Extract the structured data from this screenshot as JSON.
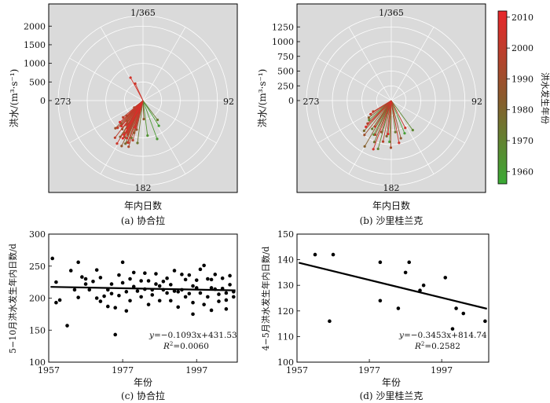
{
  "chart_data": [
    {
      "type": "polar",
      "panel": "a",
      "caption": "(a) 协合拉",
      "ylabel": "洪水/(m³·s⁻¹)",
      "xlabel": "年内日数",
      "radial_ticks": [
        "2000",
        "1500",
        "1000",
        "500",
        "0"
      ],
      "radial_tick_values": [
        2000,
        1500,
        1000,
        500,
        0
      ],
      "radial_max": 2280,
      "angle_labels": {
        "top": "1/365",
        "right": "92",
        "bottom": "182",
        "left": "273"
      },
      "series": [
        {
          "day": 150,
          "flood": 800,
          "year": 1960
        },
        {
          "day": 162,
          "flood": 1100,
          "year": 1962
        },
        {
          "day": 175,
          "flood": 950,
          "year": 1964
        },
        {
          "day": 200,
          "flood": 1050,
          "year": 1966
        },
        {
          "day": 212,
          "flood": 1000,
          "year": 1968
        },
        {
          "day": 226,
          "flood": 850,
          "year": 1970
        },
        {
          "day": 145,
          "flood": 650,
          "year": 1972
        },
        {
          "day": 190,
          "flood": 1150,
          "year": 1974
        },
        {
          "day": 222,
          "flood": 700,
          "year": 1976
        },
        {
          "day": 205,
          "flood": 1250,
          "year": 1978
        },
        {
          "day": 198,
          "flood": 900,
          "year": 1980
        },
        {
          "day": 215,
          "flood": 1150,
          "year": 1982
        },
        {
          "day": 230,
          "flood": 600,
          "year": 1984
        },
        {
          "day": 180,
          "flood": 500,
          "year": 1985
        },
        {
          "day": 208,
          "flood": 1350,
          "year": 1986
        },
        {
          "day": 219,
          "flood": 950,
          "year": 1987
        },
        {
          "day": 195,
          "flood": 800,
          "year": 1988
        },
        {
          "day": 228,
          "flood": 1050,
          "year": 1989
        },
        {
          "day": 210,
          "flood": 1100,
          "year": 1990
        },
        {
          "day": 203,
          "flood": 1200,
          "year": 1991
        },
        {
          "day": 216,
          "flood": 750,
          "year": 1992
        },
        {
          "day": 224,
          "flood": 900,
          "year": 1993
        },
        {
          "day": 200,
          "flood": 1300,
          "year": 1994
        },
        {
          "day": 207,
          "flood": 1000,
          "year": 1995
        },
        {
          "day": 213,
          "flood": 850,
          "year": 1996
        },
        {
          "day": 233,
          "flood": 700,
          "year": 1997
        },
        {
          "day": 197,
          "flood": 1100,
          "year": 1998
        },
        {
          "day": 220,
          "flood": 1250,
          "year": 1999
        },
        {
          "day": 209,
          "flood": 950,
          "year": 2000
        },
        {
          "day": 226,
          "flood": 1000,
          "year": 2001
        },
        {
          "day": 202,
          "flood": 1200,
          "year": 2002
        },
        {
          "day": 214,
          "flood": 1350,
          "year": 2003
        },
        {
          "day": 218,
          "flood": 800,
          "year": 2004
        },
        {
          "day": 206,
          "flood": 1100,
          "year": 2005
        },
        {
          "day": 223,
          "flood": 900,
          "year": 2006
        },
        {
          "day": 212,
          "flood": 1050,
          "year": 2007
        },
        {
          "day": 199,
          "flood": 750,
          "year": 2008
        },
        {
          "day": 230,
          "flood": 850,
          "year": 2009
        },
        {
          "day": 211,
          "flood": 1150,
          "year": 2010
        },
        {
          "day": 336,
          "flood": 700,
          "year": 2005
        },
        {
          "day": 340,
          "flood": 500,
          "year": 2003
        },
        {
          "day": 235,
          "flood": 300,
          "year": 1996
        }
      ]
    },
    {
      "type": "polar",
      "panel": "b",
      "caption": "(b) 沙里桂兰克",
      "ylabel": "洪水/(m³·s⁻¹)",
      "xlabel": "年内日数",
      "radial_ticks": [
        "1250",
        "1000",
        "750",
        "500",
        "250",
        "0"
      ],
      "radial_tick_values": [
        1250,
        1000,
        750,
        500,
        250,
        0
      ],
      "radial_max": 1440,
      "angle_labels": {
        "top": "1/365",
        "right": "92",
        "bottom": "182",
        "left": "273"
      },
      "series": [
        {
          "day": 160,
          "flood": 600,
          "year": 1960
        },
        {
          "day": 185,
          "flood": 700,
          "year": 1962
        },
        {
          "day": 210,
          "flood": 650,
          "year": 1964
        },
        {
          "day": 232,
          "flood": 500,
          "year": 1966
        },
        {
          "day": 146,
          "flood": 620,
          "year": 1968
        },
        {
          "day": 198,
          "flood": 850,
          "year": 1970
        },
        {
          "day": 217,
          "flood": 580,
          "year": 1972
        },
        {
          "day": 175,
          "flood": 540,
          "year": 1974
        },
        {
          "day": 205,
          "flood": 760,
          "year": 1976
        },
        {
          "day": 225,
          "flood": 690,
          "year": 1978
        },
        {
          "day": 190,
          "flood": 610,
          "year": 1980
        },
        {
          "day": 213,
          "flood": 900,
          "year": 1982
        },
        {
          "day": 236,
          "flood": 480,
          "year": 1984
        },
        {
          "day": 168,
          "flood": 660,
          "year": 1986
        },
        {
          "day": 200,
          "flood": 560,
          "year": 1988
        },
        {
          "day": 221,
          "flood": 740,
          "year": 1990
        },
        {
          "day": 183,
          "flood": 800,
          "year": 1992
        },
        {
          "day": 208,
          "flood": 640,
          "year": 1994
        },
        {
          "day": 229,
          "flood": 560,
          "year": 1996
        },
        {
          "day": 194,
          "flood": 710,
          "year": 1998
        },
        {
          "day": 215,
          "flood": 520,
          "year": 2000
        },
        {
          "day": 240,
          "flood": 420,
          "year": 2002
        },
        {
          "day": 172,
          "flood": 730,
          "year": 2004
        },
        {
          "day": 203,
          "flood": 880,
          "year": 2006
        },
        {
          "day": 227,
          "flood": 620,
          "year": 2008
        },
        {
          "day": 188,
          "flood": 570,
          "year": 2010
        },
        {
          "day": 155,
          "flood": 520,
          "year": 2003
        },
        {
          "day": 242,
          "flood": 360,
          "year": 1999
        }
      ]
    },
    {
      "type": "scatter",
      "panel": "c",
      "caption": "(c) 协合拉",
      "xlabel": "年份",
      "ylabel": "5−10月洪水发生年内日数/d",
      "xlim": [
        1957,
        2008
      ],
      "ylim": [
        100,
        300
      ],
      "xticks": [
        1957,
        1977,
        1997
      ],
      "yticks": [
        100,
        150,
        200,
        250,
        300
      ],
      "trend": {
        "slope": -0.1093,
        "intercept": 431.53
      },
      "equation_prefix": "y",
      "equation_body": "=−0.1093x+431.53",
      "r2_prefix": "R",
      "r2_sup": "2",
      "r2_body": "=0.0060",
      "points": [
        [
          1958,
          262
        ],
        [
          1959,
          225
        ],
        [
          1959,
          193
        ],
        [
          1960,
          197
        ],
        [
          1962,
          157
        ],
        [
          1963,
          243
        ],
        [
          1964,
          213
        ],
        [
          1965,
          256
        ],
        [
          1965,
          201
        ],
        [
          1966,
          233
        ],
        [
          1967,
          230
        ],
        [
          1967,
          222
        ],
        [
          1968,
          213
        ],
        [
          1969,
          226
        ],
        [
          1970,
          244
        ],
        [
          1970,
          200
        ],
        [
          1971,
          232
        ],
        [
          1971,
          195
        ],
        [
          1972,
          203
        ],
        [
          1973,
          213
        ],
        [
          1973,
          187
        ],
        [
          1974,
          222
        ],
        [
          1974,
          207
        ],
        [
          1975,
          143
        ],
        [
          1975,
          185
        ],
        [
          1976,
          236
        ],
        [
          1976,
          204
        ],
        [
          1977,
          256
        ],
        [
          1977,
          224
        ],
        [
          1978,
          210
        ],
        [
          1978,
          180
        ],
        [
          1979,
          196
        ],
        [
          1979,
          230
        ],
        [
          1980,
          240
        ],
        [
          1980,
          218
        ],
        [
          1981,
          211
        ],
        [
          1982,
          227
        ],
        [
          1982,
          202
        ],
        [
          1983,
          239
        ],
        [
          1983,
          214
        ],
        [
          1984,
          190
        ],
        [
          1984,
          227
        ],
        [
          1985,
          213
        ],
        [
          1985,
          205
        ],
        [
          1986,
          238
        ],
        [
          1986,
          222
        ],
        [
          1987,
          219
        ],
        [
          1987,
          196
        ],
        [
          1988,
          213
        ],
        [
          1988,
          226
        ],
        [
          1989,
          208
        ],
        [
          1989,
          231
        ],
        [
          1990,
          221
        ],
        [
          1990,
          196
        ],
        [
          1991,
          211
        ],
        [
          1991,
          243
        ],
        [
          1992,
          210
        ],
        [
          1992,
          186
        ],
        [
          1993,
          237
        ],
        [
          1993,
          213
        ],
        [
          1994,
          229
        ],
        [
          1994,
          202
        ],
        [
          1995,
          207
        ],
        [
          1995,
          236
        ],
        [
          1996,
          219
        ],
        [
          1996,
          193
        ],
        [
          1997,
          216
        ],
        [
          1997,
          228
        ],
        [
          1998,
          245
        ],
        [
          1998,
          208
        ],
        [
          1999,
          190
        ],
        [
          1999,
          251
        ],
        [
          2000,
          202
        ],
        [
          2000,
          230
        ],
        [
          2001,
          216
        ],
        [
          2001,
          181
        ],
        [
          2002,
          214
        ],
        [
          2002,
          237
        ],
        [
          2003,
          195
        ],
        [
          2003,
          206
        ],
        [
          2004,
          215
        ],
        [
          2004,
          231
        ],
        [
          2005,
          208
        ],
        [
          2005,
          197
        ],
        [
          2006,
          221
        ],
        [
          2006,
          235
        ],
        [
          2007,
          210
        ],
        [
          2007,
          202
        ],
        [
          2001,
          229
        ],
        [
          1996,
          175
        ],
        [
          2005,
          183
        ]
      ]
    },
    {
      "type": "scatter",
      "panel": "d",
      "caption": "(d) 沙里桂兰克",
      "xlabel": "年份",
      "ylabel": "4−5月洪水发生年内日数/d",
      "xlim": [
        1957,
        2010
      ],
      "ylim": [
        100,
        150
      ],
      "xticks": [
        1957,
        1977,
        1997
      ],
      "yticks": [
        100,
        110,
        120,
        130,
        140,
        150
      ],
      "trend": {
        "slope": -0.3453,
        "intercept": 814.74
      },
      "equation_prefix": "y",
      "equation_body": "=−0.3453x+814.74",
      "r2_prefix": "R",
      "r2_sup": "2",
      "r2_body": "=0.2582",
      "points": [
        [
          1962,
          142
        ],
        [
          1966,
          116
        ],
        [
          1967,
          142
        ],
        [
          1980,
          139
        ],
        [
          1980,
          124
        ],
        [
          1985,
          121
        ],
        [
          1987,
          135
        ],
        [
          1988,
          139
        ],
        [
          1991,
          128
        ],
        [
          1992,
          130
        ],
        [
          1998,
          133
        ],
        [
          2000,
          113
        ],
        [
          2001,
          121
        ],
        [
          2003,
          119
        ],
        [
          2009,
          116
        ]
      ]
    }
  ],
  "colorbar": {
    "label": "洪水发生年份",
    "ticks": [
      1960,
      1970,
      1980,
      1990,
      2000,
      2010
    ],
    "min": 1956,
    "max": 2012,
    "low_color": "#3aaa35",
    "high_color": "#e8262b",
    "mid_color": "#8a5a2c"
  }
}
